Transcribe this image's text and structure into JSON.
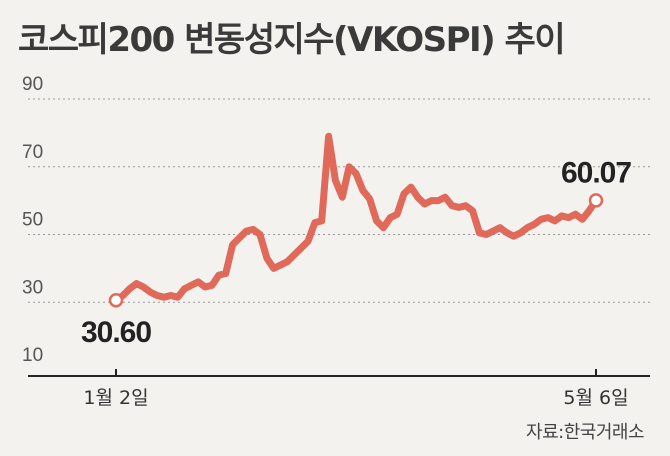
{
  "title": "코스피200 변동성지수(VKOSPI) 추이",
  "source": "자료:한국거래소",
  "chart_data": {
    "type": "line",
    "title": "코스피200 변동성지수(VKOSPI) 추이",
    "ylim": [
      10,
      90
    ],
    "yticks": [
      90,
      70,
      50,
      30,
      10
    ],
    "grid": true,
    "xtick_labels": [
      "1월 2일",
      "5월 6일"
    ],
    "line_color": "#e0695a",
    "start_label": "30.60",
    "end_label": "60.07",
    "series": [
      {
        "values": [
          30.6,
          32.0,
          34.0,
          35.5,
          34.5,
          33.0,
          32.0,
          31.5,
          32.0,
          31.5,
          34.0,
          35.0,
          36.0,
          34.5,
          35.0,
          38.0,
          38.5,
          47.0,
          49.0,
          51.0,
          51.5,
          50.0,
          43.0,
          40.0,
          41.0,
          42.0,
          44.0,
          46.0,
          48.0,
          53.5,
          54.0,
          79.0,
          66.0,
          61.0,
          70.0,
          68.0,
          63.0,
          60.5,
          54.0,
          52.0,
          55.0,
          56.0,
          62.0,
          64.0,
          61.0,
          59.0,
          60.0,
          60.0,
          61.0,
          58.5,
          58.0,
          58.5,
          57.0,
          50.5,
          50.0,
          51.0,
          52.0,
          50.5,
          49.5,
          50.5,
          52.0,
          53.0,
          54.5,
          55.0,
          54.0,
          55.5,
          55.0,
          56.0,
          54.5,
          57.0,
          60.07
        ]
      }
    ]
  }
}
